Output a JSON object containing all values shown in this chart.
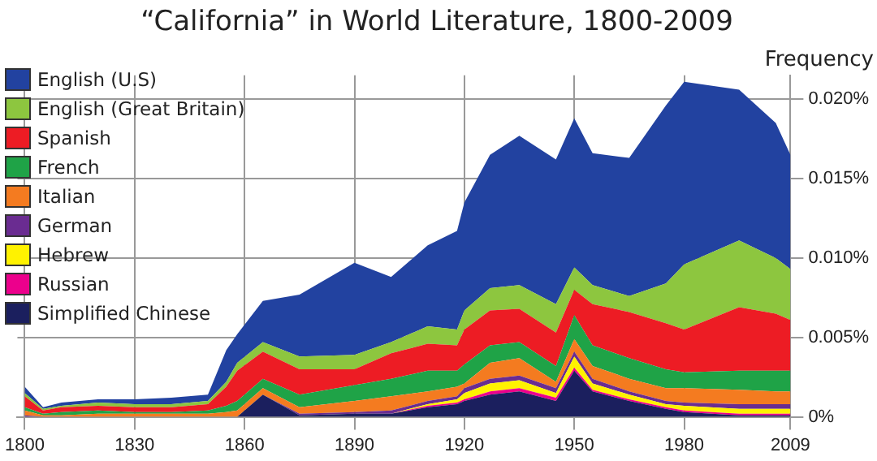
{
  "chart_data": {
    "type": "area",
    "title": "“California” in World Literature, 1800-2009",
    "ylabel": "Frequency",
    "stacked": true,
    "grid": true,
    "legend": "top left",
    "x": [
      1800,
      1805,
      1810,
      1820,
      1830,
      1840,
      1850,
      1855,
      1858,
      1865,
      1875,
      1890,
      1900,
      1910,
      1918,
      1920,
      1927,
      1935,
      1945,
      1950,
      1955,
      1965,
      1975,
      1980,
      1995,
      2005,
      2009
    ],
    "xlim": [
      1798,
      2009
    ],
    "xticks": [
      1800,
      1830,
      1860,
      1890,
      1920,
      1950,
      1980,
      2009
    ],
    "ylim": [
      0,
      0.0215
    ],
    "yticks": [
      {
        "value": 0,
        "label": "0%"
      },
      {
        "value": 0.005,
        "label": "0.005%"
      },
      {
        "value": 0.01,
        "label": "0.010%"
      },
      {
        "value": 0.015,
        "label": "0.015%"
      },
      {
        "value": 0.02,
        "label": "0.020%"
      }
    ],
    "series": [
      {
        "name": "Simplified Chinese",
        "color": "#1b1f5e",
        "values": [
          0,
          0,
          0,
          0,
          0,
          0,
          0,
          0,
          0,
          0.0014,
          0.0001,
          0.0002,
          0.0002,
          0.0006,
          0.0008,
          0.001,
          0.0014,
          0.0016,
          0.001,
          0.0029,
          0.0016,
          0.001,
          0.0005,
          0.0003,
          0.0001,
          0.0001,
          0.0001
        ]
      },
      {
        "name": "Russian",
        "color": "#ec008c",
        "values": [
          0,
          0,
          0,
          0,
          0,
          0,
          0,
          0,
          0,
          0,
          0,
          0,
          0,
          0.0001,
          0.0001,
          0.0001,
          0.0002,
          0.0002,
          0.0002,
          0.0002,
          0.0001,
          0.0001,
          0.0001,
          0.0001,
          0.0001,
          0.0001,
          0.0001
        ]
      },
      {
        "name": "Hebrew",
        "color": "#fff200",
        "values": [
          0,
          0,
          0,
          0,
          0,
          0,
          0,
          0,
          0,
          0,
          0,
          0,
          0,
          0.0001,
          0.0002,
          0.0004,
          0.0005,
          0.0005,
          0.0003,
          0.0007,
          0.0004,
          0.0003,
          0.0002,
          0.0003,
          0.0003,
          0.0003,
          0.0003
        ]
      },
      {
        "name": "German",
        "color": "#6a2c91",
        "values": [
          0.0001,
          0,
          0,
          0,
          0,
          0,
          0,
          0,
          0,
          0,
          0.0001,
          0.0001,
          0.0002,
          0.0002,
          0.0002,
          0.0003,
          0.0003,
          0.0003,
          0.0003,
          0.0003,
          0.0003,
          0.0002,
          0.0002,
          0.0002,
          0.0003,
          0.0003,
          0.0003
        ]
      },
      {
        "name": "Italian",
        "color": "#f47b20",
        "values": [
          0.0003,
          0.0001,
          0.0001,
          0.0002,
          0.0002,
          0.0002,
          0.0002,
          0.0003,
          0.0004,
          0.0004,
          0.0004,
          0.0007,
          0.0009,
          0.0006,
          0.0006,
          0.0003,
          0.001,
          0.0011,
          0.0004,
          0.0008,
          0.0008,
          0.0008,
          0.0008,
          0.0009,
          0.0009,
          0.0008,
          0.0008
        ]
      },
      {
        "name": "French",
        "color": "#1fa347",
        "values": [
          0.0002,
          0.0001,
          0.0002,
          0.0002,
          0.0001,
          0.0001,
          0.0002,
          0.0004,
          0.0006,
          0.0006,
          0.0008,
          0.001,
          0.0011,
          0.0013,
          0.001,
          0.0012,
          0.0011,
          0.001,
          0.001,
          0.0015,
          0.0013,
          0.0013,
          0.0012,
          0.001,
          0.0012,
          0.0013,
          0.0013
        ]
      },
      {
        "name": "Spanish",
        "color": "#ed1c24",
        "values": [
          0.0007,
          0.0002,
          0.0003,
          0.0003,
          0.0003,
          0.0003,
          0.0004,
          0.0012,
          0.0019,
          0.0017,
          0.0016,
          0.001,
          0.0016,
          0.0017,
          0.0016,
          0.0022,
          0.0022,
          0.0021,
          0.0021,
          0.0016,
          0.0026,
          0.0029,
          0.0029,
          0.0027,
          0.004,
          0.0036,
          0.0032
        ]
      },
      {
        "name": "English (Great Britain)",
        "color": "#8dc63f",
        "values": [
          0.0002,
          0.0001,
          0.0001,
          0.0002,
          0.0002,
          0.0002,
          0.0002,
          0.0003,
          0.0005,
          0.0006,
          0.0008,
          0.0009,
          0.0007,
          0.0011,
          0.001,
          0.0012,
          0.0014,
          0.0015,
          0.0018,
          0.0014,
          0.0012,
          0.001,
          0.0025,
          0.0041,
          0.0042,
          0.0035,
          0.0032
        ]
      },
      {
        "name": "English (U.S)",
        "color": "#2242a0",
        "values": [
          0.0004,
          0.0001,
          0.0002,
          0.0002,
          0.0003,
          0.0004,
          0.0004,
          0.002,
          0.0018,
          0.0026,
          0.0039,
          0.0058,
          0.0041,
          0.0051,
          0.0062,
          0.0068,
          0.0084,
          0.0094,
          0.0091,
          0.0094,
          0.0083,
          0.0087,
          0.0112,
          0.0115,
          0.0095,
          0.0085,
          0.0072
        ]
      }
    ]
  }
}
